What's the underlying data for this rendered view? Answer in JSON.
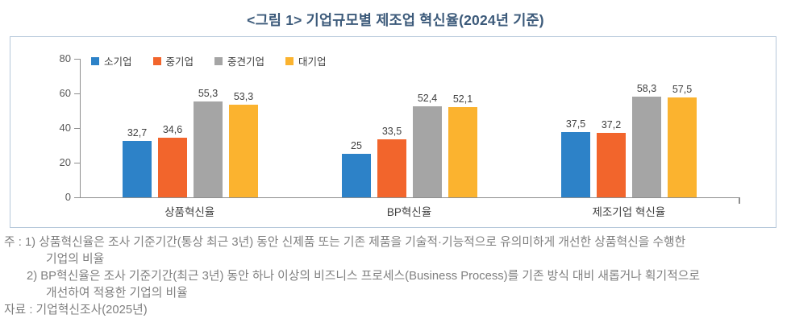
{
  "title": "<그림 1> 기업규모별 제조업 혁신율(2024년 기준)",
  "chart_data": {
    "type": "bar",
    "title": "<그림 1> 기업규모별 제조업 혁신율(2024년 기준)",
    "categories": [
      "상품혁신율",
      "BP혁신율",
      "제조기업 혁신율"
    ],
    "series": [
      {
        "name": "소기업",
        "color": "#2d82c8",
        "values": [
          32.7,
          25.0,
          37.5
        ],
        "labels": [
          "32,7",
          "25",
          "37,5"
        ]
      },
      {
        "name": "중기업",
        "color": "#f2652c",
        "values": [
          34.6,
          33.5,
          37.2
        ],
        "labels": [
          "34,6",
          "33,5",
          "37,2"
        ]
      },
      {
        "name": "중견기업",
        "color": "#a5a5a5",
        "values": [
          55.3,
          52.4,
          58.3
        ],
        "labels": [
          "55,3",
          "52,4",
          "58,3"
        ]
      },
      {
        "name": "대기업",
        "color": "#fbb32f",
        "values": [
          53.3,
          52.1,
          57.5
        ],
        "labels": [
          "53,3",
          "52,1",
          "57,5"
        ]
      }
    ],
    "xlabel": "",
    "ylabel": "",
    "ylim": [
      0,
      80
    ],
    "yticks": [
      0,
      20,
      40,
      60,
      80
    ],
    "grid": false,
    "legend_position": "top-inside-left"
  },
  "notes": [
    {
      "text": "주 : 1) 상품혁신율은 조사 기준기간(통상 최근 3년) 동안 신제품 또는 기존 제품을 기술적·기능적으로 유의미하게 개선한 상품혁신을 수행한",
      "level": 0
    },
    {
      "text": "기업의 비율",
      "level": 2
    },
    {
      "text": "2) BP혁신율은 조사 기준기간(최근 3년) 동안 하나 이상의 비즈니스 프로세스(Business Process)를 기존 방식 대비 새롭거나 획기적으로",
      "level": 1
    },
    {
      "text": "개선하여 적용한 기업의 비율",
      "level": 2
    },
    {
      "text": "자료 : 기업혁신조사(2025년)",
      "level": 0
    }
  ]
}
